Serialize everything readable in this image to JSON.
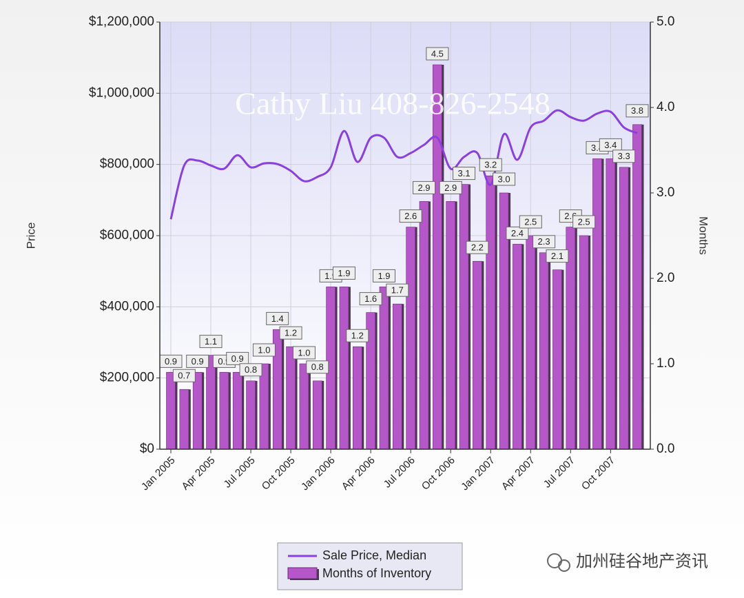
{
  "chart_data": {
    "type": "bar_line",
    "watermark": "Cathy Liu 408-826-2548",
    "brand": "加州硅谷地产资讯",
    "y_label": "Price",
    "y2_label": "Months",
    "categories": [
      "Jan 2005",
      null,
      null,
      "Apr 2005",
      null,
      null,
      "Jul 2005",
      null,
      null,
      "Oct 2005",
      null,
      null,
      "Jan 2006",
      null,
      null,
      "Apr 2006",
      null,
      null,
      "Jul 2006",
      null,
      null,
      "Oct 2006",
      null,
      null,
      "Jan 2007",
      null,
      null,
      "Apr 2007",
      null,
      null,
      "Jul 2007",
      null,
      null,
      "Oct 2007",
      null,
      null
    ],
    "ylim": [
      0,
      1200000
    ],
    "yticks": [
      {
        "value": 0,
        "label": "$0"
      },
      {
        "value": 200000,
        "label": "$200,000"
      },
      {
        "value": 400000,
        "label": "$400,000"
      },
      {
        "value": 600000,
        "label": "$600,000"
      },
      {
        "value": 800000,
        "label": "$800,000"
      },
      {
        "value": 1000000,
        "label": "$1,000,000"
      },
      {
        "value": 1200000,
        "label": "$1,200,000"
      }
    ],
    "y2lim": [
      0,
      5
    ],
    "y2ticks": [
      {
        "value": 0,
        "label": "0.0"
      },
      {
        "value": 1,
        "label": "1.0"
      },
      {
        "value": 2,
        "label": "2.0"
      },
      {
        "value": 3,
        "label": "3.0"
      },
      {
        "value": 4,
        "label": "4.0"
      },
      {
        "value": 5,
        "label": "5.0"
      }
    ],
    "grid": true,
    "series": [
      {
        "name": "Sale Price, Median",
        "type": "line",
        "color": "#8a3fe0",
        "values": [
          646000,
          797000,
          811000,
          797000,
          788000,
          826000,
          792000,
          803000,
          801000,
          782000,
          753000,
          765000,
          792000,
          894000,
          807000,
          875000,
          875000,
          821000,
          832000,
          855000,
          875000,
          788000,
          821000,
          832000,
          743000,
          885000,
          813000,
          904000,
          923000,
          952000,
          933000,
          923000,
          943000,
          948000,
          904000,
          888000
        ]
      },
      {
        "name": "Months of Inventory",
        "type": "bar",
        "axis": "y2",
        "color": "#b557c9",
        "values": [
          0.9,
          0.7,
          0.9,
          1.1,
          0.9,
          0.9,
          0.8,
          1.0,
          1.4,
          1.2,
          1.0,
          0.8,
          1.9,
          1.9,
          1.2,
          1.6,
          1.9,
          1.7,
          2.6,
          2.9,
          4.5,
          2.9,
          3.1,
          2.2,
          3.2,
          3.0,
          2.4,
          2.5,
          2.3,
          2.1,
          2.6,
          2.5,
          3.4,
          3.4,
          3.3,
          3.8
        ],
        "value_labels": [
          "0.9",
          "0.7",
          "0.9",
          "1.1",
          "0.9",
          "0.9",
          "0.8",
          "1.0",
          "1.4",
          "1.2",
          "1.0",
          "0.8",
          "1.9",
          "1.9",
          "1.2",
          "1.6",
          "1.9",
          "1.7",
          "2.6",
          "2.9",
          "4.5",
          "2.9",
          "3.1",
          "2.2",
          "3.2",
          "3.0",
          "2.4",
          "2.5",
          "2.3",
          "2.1",
          "2.6",
          "2.5",
          "3.4",
          "3.4",
          "3.3",
          "3.8"
        ]
      }
    ]
  }
}
